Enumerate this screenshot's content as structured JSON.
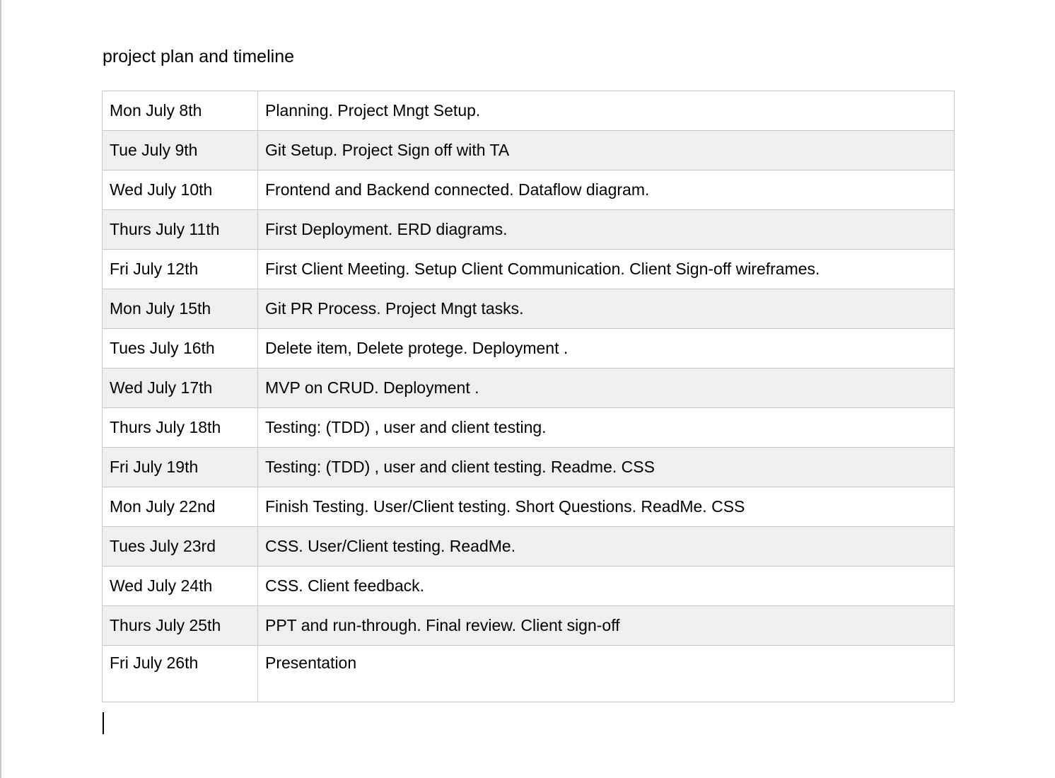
{
  "document": {
    "title": "project plan and timeline"
  },
  "schedule": {
    "rows": [
      {
        "date": "Mon July 8th",
        "task": "Planning. Project Mngt Setup."
      },
      {
        "date": "Tue July 9th",
        "task": "Git Setup. Project Sign off with TA"
      },
      {
        "date": "Wed July 10th",
        "task": "Frontend and Backend connected. Dataflow diagram."
      },
      {
        "date": "Thurs July 11th",
        "task": "First Deployment. ERD diagrams."
      },
      {
        "date": "Fri July 12th",
        "task": "First Client Meeting. Setup Client Communication. Client Sign-off wireframes."
      },
      {
        "date": "Mon July 15th",
        "task": "Git PR Process. Project Mngt tasks."
      },
      {
        "date": "Tues July 16th",
        "task": "Delete item, Delete protege. Deployment ."
      },
      {
        "date": "Wed July 17th",
        "task": "MVP on CRUD. Deployment ."
      },
      {
        "date": "Thurs July 18th",
        "task": "Testing: (TDD) , user and client testing."
      },
      {
        "date": "Fri July 19th",
        "task": "Testing: (TDD) , user and client testing. Readme. CSS"
      },
      {
        "date": "Mon July 22nd",
        "task": "Finish Testing. User/Client testing. Short Questions. ReadMe. CSS"
      },
      {
        "date": "Tues July 23rd",
        "task": "CSS. User/Client testing. ReadMe."
      },
      {
        "date": "Wed July 24th",
        "task": "CSS. Client feedback."
      },
      {
        "date": "Thurs July 25th",
        "task": "PPT and run-through. Final review. Client sign-off"
      },
      {
        "date": "Fri July 26th",
        "task": "Presentation"
      }
    ]
  },
  "colors": {
    "row_alt_background": "#efefef",
    "border": "#c6c6c6",
    "text": "#000000"
  }
}
